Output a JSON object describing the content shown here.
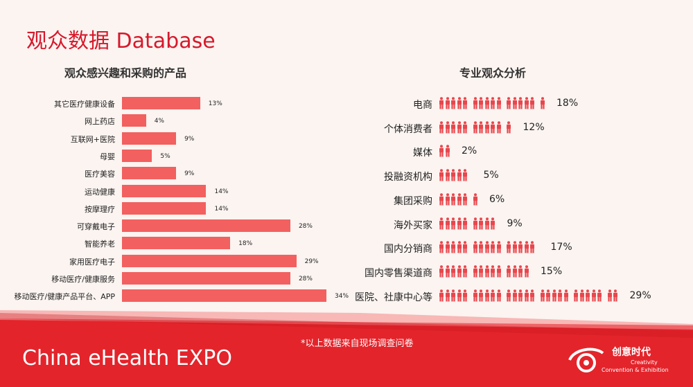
{
  "page": {
    "title": "观众数据 Database",
    "note": "*以上数据来自现场调查问卷",
    "brand": "China eHealth EXPO",
    "corner_logo": {
      "cn": "创意时代",
      "en1": "Creativity",
      "en2": "Convention & Exhibition"
    }
  },
  "colors": {
    "bar": "#f2605f",
    "icon": "#e8474d",
    "title": "#d7192b",
    "footer": "#e3242b"
  },
  "chart_data": [
    {
      "type": "bar",
      "orientation": "horizontal",
      "title": "观众感兴趣和采购的产品",
      "categories": [
        "其它医疗健康设备",
        "网上药店",
        "互联网+医院",
        "母婴",
        "医疗美容",
        "运动健康",
        "按摩理疗",
        "可穿戴电子",
        "智能养老",
        "家用医疗电子",
        "移动医疗/健康服务",
        "移动医疗/健康产品平台、APP"
      ],
      "values": [
        13,
        4,
        9,
        5,
        9,
        14,
        14,
        28,
        18,
        29,
        28,
        34
      ],
      "value_labels": [
        "13%",
        "4%",
        "9%",
        "5%",
        "9%",
        "14%",
        "14%",
        "28%",
        "18%",
        "29%",
        "28%",
        "34%"
      ],
      "xlim": [
        0,
        34
      ],
      "grid": false,
      "legend": "none"
    },
    {
      "type": "pictograph",
      "title": "专业观众分析",
      "icon": "person-icon",
      "categories": [
        "电商",
        "个体消费者",
        "媒体",
        "投融资机构",
        "集团采购",
        "海外买家",
        "国内分销商",
        "国内零售渠道商",
        "医院、社康中心等"
      ],
      "values": [
        18,
        12,
        2,
        5,
        6,
        9,
        17,
        15,
        29
      ],
      "value_labels": [
        "18%",
        "12%",
        "2%",
        "5%",
        "6%",
        "9%",
        "17%",
        "15%",
        "29%"
      ],
      "icons_per_group": 5
    }
  ]
}
